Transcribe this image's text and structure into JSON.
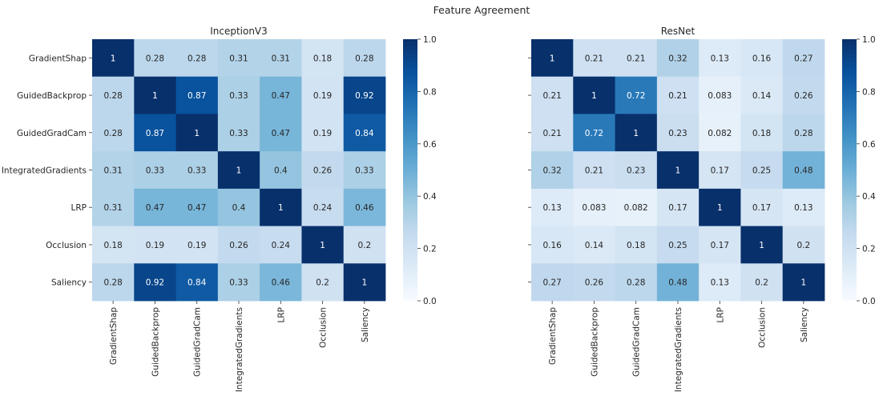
{
  "figure": {
    "title": "Feature Agreement"
  },
  "chart_data": [
    {
      "type": "heatmap",
      "title": "InceptionV3",
      "xlabel": "",
      "ylabel": "",
      "categories": [
        "GradientShap",
        "GuidedBackprop",
        "GuidedGradCam",
        "IntegratedGradients",
        "LRP",
        "Occlusion",
        "Saliency"
      ],
      "values": [
        [
          1,
          0.28,
          0.28,
          0.31,
          0.31,
          0.18,
          0.28
        ],
        [
          0.28,
          1,
          0.87,
          0.33,
          0.47,
          0.19,
          0.92
        ],
        [
          0.28,
          0.87,
          1,
          0.33,
          0.47,
          0.19,
          0.84
        ],
        [
          0.31,
          0.33,
          0.33,
          1,
          0.4,
          0.26,
          0.33
        ],
        [
          0.31,
          0.47,
          0.47,
          0.4,
          1,
          0.24,
          0.46
        ],
        [
          0.18,
          0.19,
          0.19,
          0.26,
          0.24,
          1,
          0.2
        ],
        [
          0.28,
          0.92,
          0.84,
          0.33,
          0.46,
          0.2,
          1
        ]
      ],
      "colorbar": {
        "range": [
          0,
          1
        ],
        "ticks": [
          "0.0",
          "0.2",
          "0.4",
          "0.6",
          "0.8",
          "1.0"
        ],
        "colormap": "Blues"
      },
      "annotated": true
    },
    {
      "type": "heatmap",
      "title": "ResNet",
      "xlabel": "",
      "ylabel": "",
      "categories": [
        "GradientShap",
        "GuidedBackprop",
        "GuidedGradCam",
        "IntegratedGradients",
        "LRP",
        "Occlusion",
        "Saliency"
      ],
      "values": [
        [
          1,
          0.21,
          0.21,
          0.32,
          0.13,
          0.16,
          0.27
        ],
        [
          0.21,
          1,
          0.72,
          0.21,
          0.083,
          0.14,
          0.26
        ],
        [
          0.21,
          0.72,
          1,
          0.23,
          0.082,
          0.18,
          0.28
        ],
        [
          0.32,
          0.21,
          0.23,
          1,
          0.17,
          0.25,
          0.48
        ],
        [
          0.13,
          0.083,
          0.082,
          0.17,
          1,
          0.17,
          0.13
        ],
        [
          0.16,
          0.14,
          0.18,
          0.25,
          0.17,
          1,
          0.2
        ],
        [
          0.27,
          0.26,
          0.28,
          0.48,
          0.13,
          0.2,
          1
        ]
      ],
      "colorbar": {
        "range": [
          0,
          1
        ],
        "ticks": [
          "0.0",
          "0.2",
          "0.4",
          "0.6",
          "0.8",
          "1.0"
        ],
        "colormap": "Blues"
      },
      "annotated": true,
      "show_y_tick_labels": false
    }
  ]
}
